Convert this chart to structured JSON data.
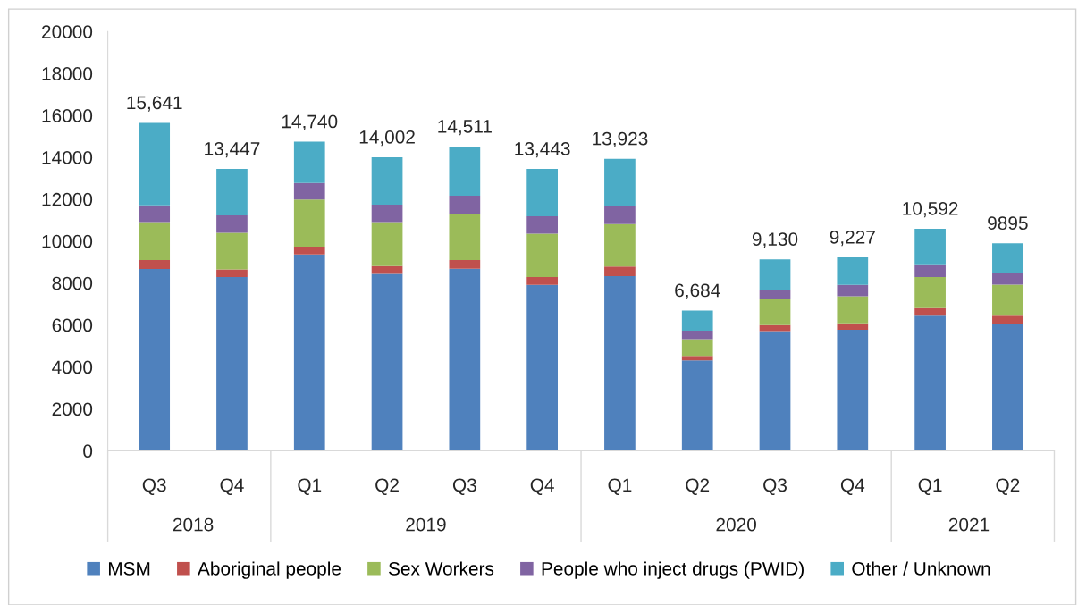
{
  "chart_data": {
    "type": "bar",
    "stacked": true,
    "categories": [
      "Q3",
      "Q4",
      "Q1",
      "Q2",
      "Q3",
      "Q4",
      "Q1",
      "Q2",
      "Q3",
      "Q4",
      "Q1",
      "Q2"
    ],
    "series": [
      {
        "name": "MSM",
        "color": "#4f81bd",
        "values": [
          8670,
          8290,
          9360,
          8430,
          8680,
          7910,
          8330,
          4310,
          5710,
          5770,
          6440,
          6060
        ]
      },
      {
        "name": "Aboriginal people",
        "color": "#c0504d",
        "values": [
          430,
          360,
          380,
          380,
          420,
          380,
          460,
          210,
          280,
          310,
          360,
          380
        ]
      },
      {
        "name": "Sex Workers",
        "color": "#9bbb59",
        "values": [
          1810,
          1750,
          2240,
          2100,
          2190,
          2060,
          2020,
          800,
          1230,
          1290,
          1490,
          1480
        ]
      },
      {
        "name": "People who inject drugs (PWID)",
        "color": "#8064a2",
        "values": [
          800,
          830,
          790,
          830,
          870,
          830,
          840,
          410,
          470,
          540,
          600,
          570
        ]
      },
      {
        "name": "Other / Unknown",
        "color": "#4bacc6",
        "values": [
          3931,
          2217,
          1970,
          2262,
          2351,
          2263,
          2273,
          954,
          1440,
          1317,
          1702,
          1405
        ]
      }
    ],
    "totals": [
      "15,641",
      "13,447",
      "14,740",
      "14,002",
      "14,511",
      "13,443",
      "13,923",
      "6,684",
      "9,130",
      "9,227",
      "10,592",
      "9895"
    ],
    "annotations": [
      "2018",
      "2019",
      "2020",
      "2021"
    ],
    "ylim": [
      0,
      20000
    ],
    "yticks": [
      0,
      2000,
      4000,
      6000,
      8000,
      10000,
      12000,
      14000,
      16000,
      18000,
      20000
    ],
    "legend": "bottom"
  }
}
